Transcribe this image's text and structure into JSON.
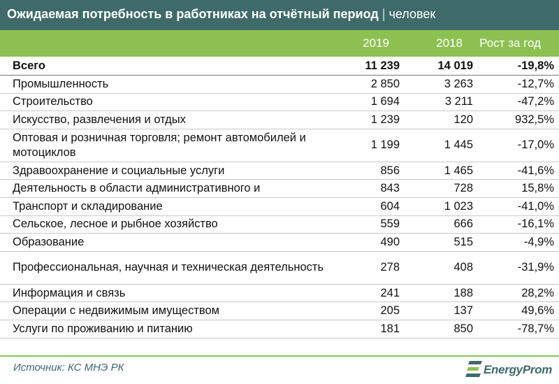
{
  "title": {
    "main": "Ожидаемая потребность в работниках на отчётный период",
    "separator": "|",
    "unit": "человек"
  },
  "colors": {
    "title_bg": "#3f6a6a",
    "header_bg": "#8cc152",
    "accent_text": "#3f6a6a"
  },
  "chart_data": {
    "type": "table",
    "columns": [
      "2019",
      "2018",
      "Рост за год"
    ],
    "rows": [
      {
        "label": "Всего",
        "v2019": "11 239",
        "v2018": "14 019",
        "growth": "-19,8%",
        "total": true
      },
      {
        "label": "Промышленность",
        "v2019": "2 850",
        "v2018": "3 263",
        "growth": "-12,7%"
      },
      {
        "label": "Строительство",
        "v2019": "1 694",
        "v2018": "3 211",
        "growth": "-47,2%"
      },
      {
        "label": "Искусство, развлечения и отдых",
        "v2019": "1 239",
        "v2018": "120",
        "growth": "932,5%"
      },
      {
        "label": "Оптовая и розничная торговля; ремонт автомобилей и мотоциклов",
        "v2019": "1 199",
        "v2018": "1 445",
        "growth": "-17,0%",
        "tall": true
      },
      {
        "label": "Здравоохранение и социальные услуги",
        "v2019": "856",
        "v2018": "1 465",
        "growth": "-41,6%"
      },
      {
        "label": "Деятельность в области административного и",
        "v2019": "843",
        "v2018": "728",
        "growth": "15,8%"
      },
      {
        "label": "Транспорт и складирование",
        "v2019": "604",
        "v2018": "1 023",
        "growth": "-41,0%"
      },
      {
        "label": "Сельское, лесное и рыбное хозяйство",
        "v2019": "559",
        "v2018": "666",
        "growth": "-16,1%"
      },
      {
        "label": "Образование",
        "v2019": "490",
        "v2018": "515",
        "growth": "-4,9%"
      },
      {
        "label": "Профессиональная, научная и техническая деятельность",
        "v2019": "278",
        "v2018": "408",
        "growth": "-31,9%",
        "tall": true
      },
      {
        "label": "Информация и связь",
        "v2019": "241",
        "v2018": "188",
        "growth": "28,2%"
      },
      {
        "label": "Операции с недвижимым имуществом",
        "v2019": "205",
        "v2018": "137",
        "growth": "49,6%"
      },
      {
        "label": "Услуги по проживанию и питанию",
        "v2019": "181",
        "v2018": "850",
        "growth": "-78,7%"
      }
    ]
  },
  "footer": {
    "source": "Источник: КС МНЭ РК",
    "logo_text": "EnergyProm",
    "logo_icon": "energyprom-logo-icon"
  }
}
